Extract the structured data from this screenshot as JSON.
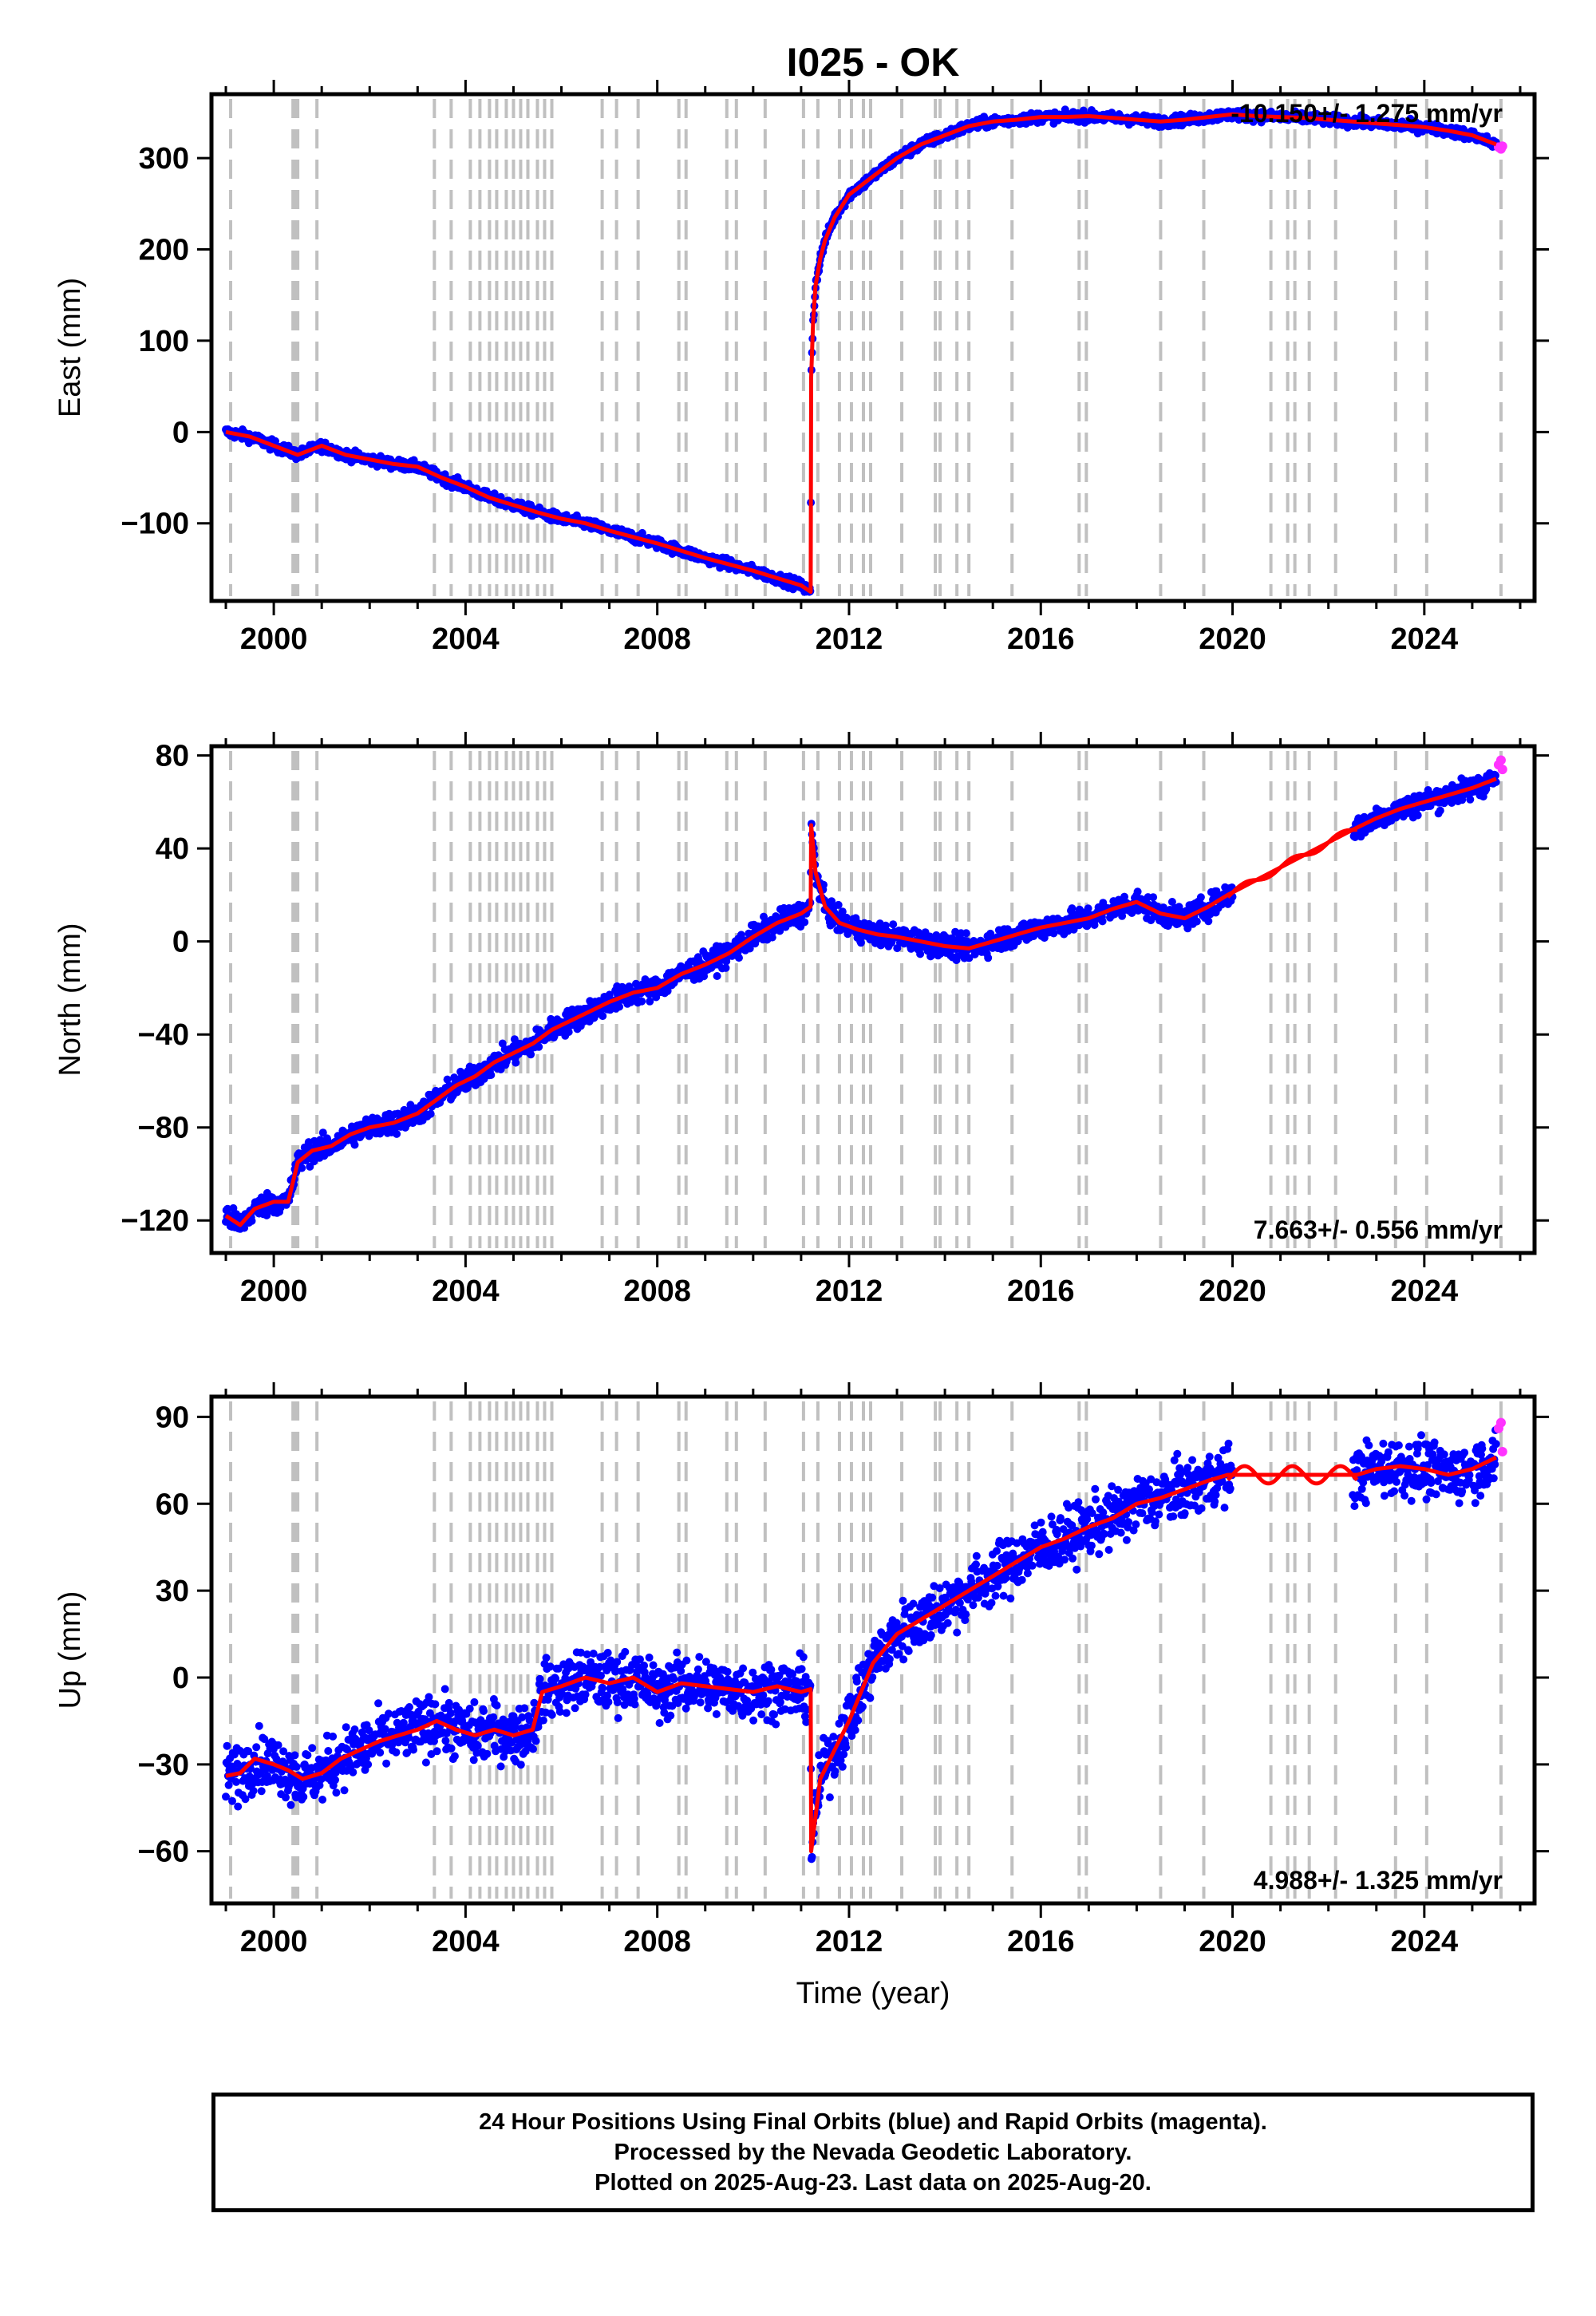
{
  "title": "I025 - OK",
  "colors": {
    "final_orbits": "#0000ff",
    "rapid_orbits": "#ff33ff",
    "fit": "#ff0000",
    "equipment_lines": "#c0c0c0"
  },
  "footer": {
    "line1": "24 Hour Positions Using Final Orbits (blue) and Rapid Orbits (magenta).",
    "line2": "Processed by the Nevada Geodetic Laboratory.",
    "line3": "Plotted on 2025-Aug-23. Last data on 2025-Aug-20."
  },
  "chart_data": [
    {
      "type": "scatter",
      "ylabel": "East (mm)",
      "xlabel": "",
      "rate_label": "-10.150+/- 1.275 mm/yr",
      "xlim": [
        1998.7,
        2026.3
      ],
      "ylim": [
        -185,
        370
      ],
      "x_ticks": [
        2000,
        2004,
        2008,
        2012,
        2016,
        2020,
        2024
      ],
      "y_ticks": [
        -100,
        0,
        100,
        200,
        300
      ],
      "series": [
        {
          "name": "Final Orbits",
          "color": "blue",
          "x": [
            1999.0,
            1999.5,
            2000.0,
            2000.5,
            2001.0,
            2001.5,
            2002.0,
            2002.5,
            2003.0,
            2003.5,
            2004.0,
            2004.5,
            2005.0,
            2005.5,
            2006.0,
            2006.5,
            2007.0,
            2007.5,
            2008.0,
            2008.5,
            2009.0,
            2009.5,
            2010.0,
            2010.5,
            2011.0,
            2011.2,
            2011.21,
            2011.25,
            2011.3,
            2011.4,
            2011.5,
            2011.7,
            2012.0,
            2012.5,
            2013.0,
            2013.5,
            2014.0,
            2014.5,
            2015.0,
            2015.5,
            2016.0,
            2016.5,
            2017.0,
            2017.5,
            2018.0,
            2018.5,
            2019.0,
            2019.5,
            2020.0,
            2020.5,
            2021.0,
            2021.5,
            2022.0,
            2022.5,
            2023.0,
            2023.5,
            2024.0,
            2024.5,
            2025.0,
            2025.5
          ],
          "y": [
            0,
            -5,
            -15,
            -25,
            -15,
            -25,
            -30,
            -35,
            -38,
            -50,
            -60,
            -72,
            -80,
            -88,
            -95,
            -100,
            -108,
            -115,
            -122,
            -130,
            -138,
            -145,
            -152,
            -160,
            -168,
            -175,
            60,
            120,
            160,
            190,
            210,
            235,
            260,
            280,
            300,
            315,
            325,
            335,
            340,
            342,
            345,
            345,
            346,
            344,
            342,
            340,
            342,
            345,
            348,
            346,
            345,
            344,
            342,
            340,
            338,
            336,
            334,
            330,
            325,
            315
          ]
        },
        {
          "name": "Rapid Orbits",
          "color": "magenta",
          "x": [
            2025.55,
            2025.6,
            2025.63
          ],
          "y": [
            312,
            310,
            313
          ]
        }
      ]
    },
    {
      "type": "scatter",
      "ylabel": "North (mm)",
      "xlabel": "",
      "rate_label": "7.663+/- 0.556 mm/yr",
      "xlim": [
        1998.7,
        2026.3
      ],
      "ylim": [
        -134,
        84
      ],
      "x_ticks": [
        2000,
        2004,
        2008,
        2012,
        2016,
        2020,
        2024
      ],
      "y_ticks": [
        -120,
        -80,
        -40,
        0,
        40,
        80
      ],
      "series": [
        {
          "name": "Final Orbits",
          "color": "blue",
          "x": [
            1999.0,
            1999.3,
            1999.6,
            2000.0,
            2000.3,
            2000.5,
            2000.8,
            2001.2,
            2001.6,
            2002.0,
            2002.5,
            2003.0,
            2003.4,
            2003.8,
            2004.2,
            2004.6,
            2005.0,
            2005.4,
            2005.8,
            2006.2,
            2006.6,
            2007.0,
            2007.5,
            2008.0,
            2008.5,
            2009.0,
            2009.5,
            2010.0,
            2010.5,
            2011.0,
            2011.2,
            2011.21,
            2011.3,
            2011.5,
            2011.8,
            2012.2,
            2012.6,
            2013.0,
            2013.5,
            2014.0,
            2014.5,
            2015.0,
            2015.5,
            2016.0,
            2016.5,
            2017.0,
            2017.5,
            2018.0,
            2018.5,
            2019.0,
            2019.5,
            2019.9,
            2022.5,
            2023.0,
            2023.5,
            2024.0,
            2024.5,
            2025.0,
            2025.5
          ],
          "y": [
            -118,
            -122,
            -115,
            -112,
            -112,
            -95,
            -90,
            -88,
            -83,
            -80,
            -78,
            -74,
            -68,
            -62,
            -58,
            -52,
            -48,
            -44,
            -38,
            -34,
            -30,
            -26,
            -22,
            -20,
            -14,
            -10,
            -5,
            2,
            8,
            12,
            15,
            50,
            30,
            15,
            8,
            5,
            3,
            2,
            0,
            -2,
            -3,
            0,
            3,
            6,
            8,
            10,
            14,
            17,
            12,
            10,
            15,
            20,
            48,
            53,
            57,
            60,
            63,
            66,
            70
          ]
        },
        {
          "name": "Rapid Orbits",
          "color": "magenta",
          "x": [
            2025.55,
            2025.6,
            2025.63
          ],
          "y": [
            76,
            78,
            74
          ]
        }
      ]
    },
    {
      "type": "scatter",
      "ylabel": "Up (mm)",
      "xlabel": "Time (year)",
      "rate_label": "4.988+/- 1.325 mm/yr",
      "xlim": [
        1998.7,
        2026.3
      ],
      "ylim": [
        -78,
        97
      ],
      "x_ticks": [
        2000,
        2004,
        2008,
        2012,
        2016,
        2020,
        2024
      ],
      "y_ticks": [
        -60,
        -30,
        0,
        30,
        60,
        90
      ],
      "series": [
        {
          "name": "Final Orbits",
          "color": "blue",
          "x": [
            1999.0,
            1999.3,
            1999.6,
            2000.0,
            2000.3,
            2000.6,
            2001.0,
            2001.4,
            2001.8,
            2002.2,
            2002.6,
            2003.0,
            2003.4,
            2003.8,
            2004.2,
            2004.6,
            2005.0,
            2005.4,
            2005.6,
            2006.0,
            2006.5,
            2007.0,
            2007.5,
            2008.0,
            2008.5,
            2009.0,
            2009.5,
            2010.0,
            2010.5,
            2011.0,
            2011.2,
            2011.21,
            2011.4,
            2011.7,
            2012.0,
            2012.5,
            2013.0,
            2013.5,
            2014.0,
            2014.5,
            2015.0,
            2015.5,
            2016.0,
            2016.5,
            2017.0,
            2017.5,
            2018.0,
            2018.5,
            2019.0,
            2019.5,
            2019.9,
            2022.6,
            2023.0,
            2023.5,
            2024.0,
            2024.5,
            2025.0,
            2025.5
          ],
          "y": [
            -34,
            -33,
            -28,
            -30,
            -32,
            -35,
            -33,
            -28,
            -25,
            -22,
            -20,
            -18,
            -15,
            -18,
            -20,
            -18,
            -20,
            -18,
            -5,
            -3,
            0,
            -2,
            0,
            -5,
            -2,
            -3,
            -4,
            -5,
            -3,
            -5,
            -4,
            -60,
            -35,
            -25,
            -15,
            5,
            15,
            20,
            25,
            30,
            35,
            40,
            45,
            48,
            52,
            55,
            60,
            62,
            65,
            68,
            70,
            70,
            72,
            73,
            72,
            70,
            72,
            76
          ]
        },
        {
          "name": "Rapid Orbits",
          "color": "magenta",
          "x": [
            2025.55,
            2025.6,
            2025.63
          ],
          "y": [
            86,
            88,
            78
          ]
        }
      ]
    }
  ],
  "equipment_change_years": [
    1999.1,
    2000.4,
    2000.45,
    2000.5,
    2000.9,
    2003.35,
    2003.7,
    2004.1,
    2004.3,
    2004.5,
    2004.65,
    2004.85,
    2005.0,
    2005.15,
    2005.3,
    2005.5,
    2005.65,
    2005.8,
    2006.85,
    2007.15,
    2007.6,
    2008.45,
    2008.6,
    2009.45,
    2009.65,
    2010.25,
    2011.05,
    2011.35,
    2011.8,
    2012.05,
    2012.3,
    2012.45,
    2013.1,
    2013.8,
    2013.9,
    2014.25,
    2014.5,
    2015.4,
    2016.8,
    2016.95,
    2018.5,
    2019.4,
    2020.8,
    2021.15,
    2021.3,
    2021.6,
    2022.15,
    2023.4,
    2024.05,
    2025.6
  ]
}
